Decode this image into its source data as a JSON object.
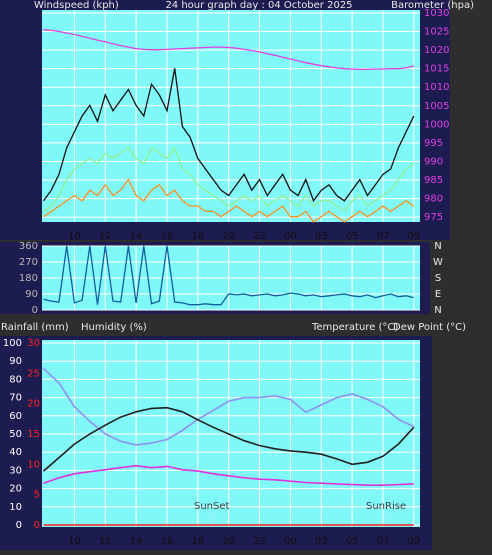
{
  "chart_data": [
    {
      "type": "line",
      "title": "24 hour graph day : 04 October 2025",
      "y_label": "Windspeed (kph)",
      "y2_label": "Barometer (hpa)",
      "x": [
        -1,
        -0.5,
        0,
        0.5,
        1,
        1.5,
        2,
        2.5,
        3,
        3.5,
        4,
        4.5,
        5,
        5.5,
        6,
        6.5,
        7,
        7.5,
        8,
        8.5,
        9,
        9.5,
        10,
        10.5,
        11,
        11.5,
        12,
        12.5,
        13,
        13.5,
        14,
        14.5,
        15,
        15.5,
        16,
        16.5,
        17,
        17.5,
        18,
        18.5,
        19,
        19.5,
        20,
        20.5,
        21,
        21.5,
        22,
        22.5,
        23
      ],
      "xlim": [
        -1.1,
        23.4
      ],
      "xticks": [
        {
          "value": 1,
          "label": "10"
        },
        {
          "value": 3,
          "label": "12"
        },
        {
          "value": 5,
          "label": "14"
        },
        {
          "value": 7,
          "label": "16"
        },
        {
          "value": 9,
          "label": "18"
        },
        {
          "value": 11,
          "label": "20"
        },
        {
          "value": 13,
          "label": "22"
        },
        {
          "value": 15,
          "label": "00"
        },
        {
          "value": 17,
          "label": "03"
        },
        {
          "value": 19,
          "label": "05"
        },
        {
          "value": 21,
          "label": "07"
        },
        {
          "value": 23,
          "label": "09"
        }
      ],
      "ylim": [
        0,
        40
      ],
      "y2lim": [
        973.7,
        1030.8
      ],
      "y2ticks": [
        975,
        980,
        985,
        990,
        995,
        1000,
        1005,
        1010,
        1015,
        1020,
        1025,
        1030
      ],
      "grid": true,
      "series": [
        {
          "color": "#101010",
          "values": [
            4,
            6,
            9,
            14,
            17,
            20,
            22,
            19,
            24,
            21,
            23,
            25,
            22,
            20,
            26,
            24,
            21,
            29,
            18,
            16,
            12,
            10,
            8,
            6,
            5,
            7,
            9,
            6,
            8,
            5,
            7,
            9,
            6,
            5,
            8,
            4,
            6,
            7,
            5,
            4,
            6,
            8,
            5,
            7,
            9,
            10,
            14,
            17,
            20
          ]
        },
        {
          "color": "#90f090",
          "values": [
            2,
            3,
            5,
            8,
            10,
            11,
            12,
            11,
            13,
            12,
            13,
            14,
            12,
            11,
            14,
            13,
            12,
            14,
            10,
            9,
            7,
            6,
            5,
            4,
            3,
            4,
            5,
            4,
            5,
            3,
            4,
            5,
            4,
            3,
            5,
            3,
            4,
            4,
            3,
            2,
            4,
            5,
            3,
            4,
            5,
            6,
            8,
            10,
            11
          ]
        },
        {
          "color": "#ff9020",
          "values": [
            1,
            2,
            3,
            4,
            5,
            4,
            6,
            5,
            7,
            5,
            6,
            8,
            5,
            4,
            6,
            7,
            5,
            6,
            4,
            3,
            3,
            2,
            2,
            1,
            2,
            3,
            2,
            1,
            2,
            1,
            2,
            3,
            1,
            1,
            2,
            0,
            1,
            2,
            1,
            0,
            1,
            2,
            1,
            2,
            3,
            2,
            3,
            4,
            3
          ]
        },
        {
          "color": "#e040e0",
          "axis": "y2",
          "values": [
            1025.5,
            1025.3,
            1025,
            1024.6,
            1024.2,
            1023.7,
            1023.2,
            1022.7,
            1022.2,
            1021.7,
            1021.2,
            1020.8,
            1020.4,
            1020.2,
            1020.1,
            1020.1,
            1020.2,
            1020.3,
            1020.4,
            1020.5,
            1020.6,
            1020.7,
            1020.8,
            1020.8,
            1020.7,
            1020.5,
            1020.2,
            1019.9,
            1019.5,
            1019,
            1018.6,
            1018.1,
            1017.6,
            1017.1,
            1016.6,
            1016.2,
            1015.8,
            1015.5,
            1015.2,
            1015,
            1014.9,
            1014.8,
            1014.8,
            1014.9,
            1014.9,
            1015,
            1015,
            1015.2,
            1015.8
          ]
        }
      ]
    },
    {
      "type": "line",
      "x": [
        -1,
        -0.5,
        0,
        0.5,
        1,
        1.5,
        2,
        2.5,
        3,
        3.5,
        4,
        4.5,
        5,
        5.5,
        6,
        6.5,
        7,
        7.5,
        8,
        8.5,
        9,
        9.5,
        10,
        10.5,
        11,
        11.5,
        12,
        12.5,
        13,
        13.5,
        14,
        14.5,
        15,
        15.5,
        16,
        16.5,
        17,
        17.5,
        18,
        18.5,
        19,
        19.5,
        20,
        20.5,
        21,
        21.5,
        22,
        22.5,
        23
      ],
      "xlim": [
        -1.1,
        23.4
      ],
      "xticks": [
        1,
        3,
        5,
        7,
        9,
        11,
        13,
        15,
        17,
        19,
        21,
        23
      ],
      "ylim": [
        0,
        360
      ],
      "yticks": [
        0,
        90,
        180,
        270,
        360
      ],
      "y2lim": [
        0,
        360
      ],
      "y2ticks": [
        {
          "value": 360,
          "label": "N"
        },
        {
          "value": 270,
          "label": "W"
        },
        {
          "value": 180,
          "label": "S"
        },
        {
          "value": 90,
          "label": "E"
        },
        {
          "value": 0,
          "label": "N"
        }
      ],
      "grid": true,
      "series": [
        {
          "color": "#1060a0",
          "values": [
            60,
            50,
            45,
            360,
            40,
            55,
            360,
            30,
            360,
            50,
            45,
            360,
            40,
            360,
            35,
            50,
            360,
            45,
            40,
            30,
            30,
            35,
            30,
            30,
            90,
            85,
            90,
            80,
            85,
            90,
            80,
            85,
            95,
            90,
            80,
            85,
            75,
            80,
            85,
            90,
            80,
            75,
            85,
            70,
            80,
            90,
            75,
            80,
            70
          ]
        }
      ]
    },
    {
      "type": "line",
      "rain_label": "Rainfall (mm)",
      "humidity_label": "Humidity (%)",
      "temperature_label": "Temperature (°C)",
      "dewpoint_label": "Dew Point (°C)",
      "x": [
        -1,
        0,
        1,
        2,
        3,
        4,
        5,
        6,
        7,
        8,
        9,
        10,
        11,
        12,
        13,
        14,
        15,
        16,
        17,
        18,
        19,
        20,
        21,
        22,
        23
      ],
      "xlim": [
        -1.1,
        23.4
      ],
      "xticks": [
        {
          "value": 1,
          "label": "10"
        },
        {
          "value": 3,
          "label": "12"
        },
        {
          "value": 5,
          "label": "14"
        },
        {
          "value": 7,
          "label": "16"
        },
        {
          "value": 9,
          "label": "18"
        },
        {
          "value": 11,
          "label": "20"
        },
        {
          "value": 13,
          "label": "22"
        },
        {
          "value": 15,
          "label": "00"
        },
        {
          "value": 17,
          "label": "03"
        },
        {
          "value": 19,
          "label": "05"
        },
        {
          "value": 21,
          "label": "07"
        },
        {
          "value": 23,
          "label": "09"
        }
      ],
      "ylim": [
        0,
        100
      ],
      "yticks": [
        0,
        10,
        20,
        30,
        40,
        50,
        60,
        70,
        80,
        90,
        100
      ],
      "y2lim": [
        0,
        30
      ],
      "y2ticks": [
        0,
        5,
        10,
        15,
        20,
        25,
        30
      ],
      "y3lim": [
        -2,
        25
      ],
      "grid": true,
      "annotations": [
        {
          "text": "SunSet",
          "x": 9.9
        },
        {
          "text": "SunRise",
          "x": 21.2
        }
      ],
      "series": [
        {
          "color": "#9090f0",
          "axis": "y",
          "values": [
            86,
            78,
            65,
            57,
            50,
            46,
            44,
            45,
            47,
            52,
            58,
            63,
            68,
            70,
            70,
            71,
            69,
            62,
            66,
            70,
            72,
            69,
            65,
            58,
            54
          ]
        },
        {
          "color": "#202020",
          "axis": "y3",
          "values": [
            6,
            8,
            10,
            11.5,
            12.8,
            14,
            14.8,
            15.3,
            15.4,
            14.8,
            13.6,
            12.5,
            11.5,
            10.5,
            9.8,
            9.3,
            9,
            8.8,
            8.5,
            7.8,
            7,
            7.3,
            8.2,
            10,
            12.5
          ]
        },
        {
          "color": "#e030e0",
          "axis": "y3",
          "values": [
            4.2,
            5,
            5.6,
            5.9,
            6.2,
            6.5,
            6.8,
            6.5,
            6.7,
            6.2,
            6,
            5.6,
            5.3,
            5,
            4.8,
            4.7,
            4.5,
            4.3,
            4.2,
            4.1,
            4,
            3.9,
            3.9,
            4,
            4.1
          ]
        },
        {
          "color": "#ff2020",
          "axis": "y2",
          "values": [
            0,
            0,
            0,
            0,
            0,
            0,
            0,
            0,
            0,
            0,
            0,
            0,
            0,
            0,
            0,
            0,
            0,
            0,
            0,
            0,
            0,
            0,
            0,
            0,
            0
          ]
        }
      ]
    }
  ]
}
